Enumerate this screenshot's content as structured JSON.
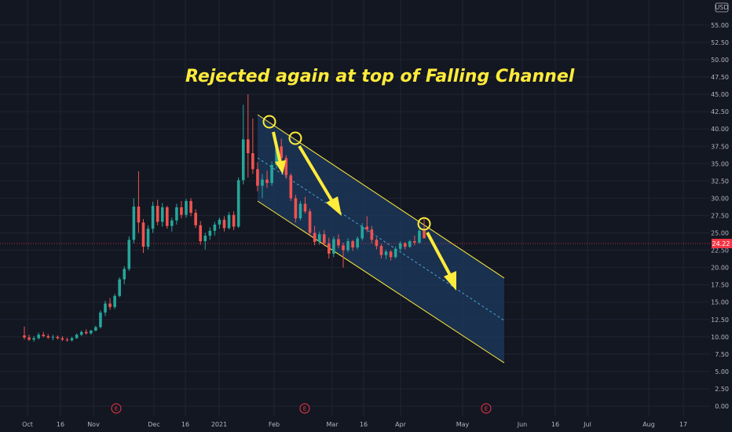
{
  "chart_data": {
    "type": "candlestick",
    "title": "Rejected again at top of Falling Channel",
    "currency": "USD",
    "current_price": "24.22",
    "y_ticks": [
      "55.00",
      "52.50",
      "50.00",
      "47.50",
      "45.00",
      "42.50",
      "40.00",
      "37.50",
      "35.00",
      "32.50",
      "30.00",
      "27.50",
      "25.00",
      "22.50",
      "20.00",
      "17.50",
      "15.00",
      "12.50",
      "10.00",
      "7.50",
      "5.00",
      "2.50",
      "0.00"
    ],
    "ylim": [
      0,
      57
    ],
    "x_ticks": [
      "Oct",
      "16",
      "Nov",
      "Dec",
      "16",
      "2021",
      "Feb",
      "Mar",
      "16",
      "Apr",
      "May",
      "Jun",
      "16",
      "Jul",
      "Aug",
      "17"
    ],
    "earnings_marker": "E",
    "candles": [
      {
        "o": 10.2,
        "h": 11.5,
        "l": 9.6,
        "c": 9.9
      },
      {
        "o": 9.9,
        "h": 10.3,
        "l": 9.4,
        "c": 9.6
      },
      {
        "o": 9.6,
        "h": 10.1,
        "l": 9.3,
        "c": 9.8
      },
      {
        "o": 9.8,
        "h": 10.6,
        "l": 9.6,
        "c": 10.3
      },
      {
        "o": 10.3,
        "h": 10.7,
        "l": 9.9,
        "c": 10.1
      },
      {
        "o": 10.1,
        "h": 10.4,
        "l": 9.7,
        "c": 9.9
      },
      {
        "o": 9.9,
        "h": 10.3,
        "l": 9.5,
        "c": 10.0
      },
      {
        "o": 10.0,
        "h": 10.2,
        "l": 9.6,
        "c": 9.8
      },
      {
        "o": 9.8,
        "h": 10.1,
        "l": 9.4,
        "c": 9.6
      },
      {
        "o": 9.6,
        "h": 9.9,
        "l": 9.3,
        "c": 9.5
      },
      {
        "o": 9.5,
        "h": 10.0,
        "l": 9.3,
        "c": 9.8
      },
      {
        "o": 9.8,
        "h": 10.5,
        "l": 9.7,
        "c": 10.3
      },
      {
        "o": 10.3,
        "h": 10.9,
        "l": 10.1,
        "c": 10.7
      },
      {
        "o": 10.7,
        "h": 11.1,
        "l": 10.3,
        "c": 10.5
      },
      {
        "o": 10.5,
        "h": 11.0,
        "l": 10.3,
        "c": 10.9
      },
      {
        "o": 10.9,
        "h": 11.6,
        "l": 10.8,
        "c": 11.4
      },
      {
        "o": 11.4,
        "h": 13.8,
        "l": 11.2,
        "c": 13.5
      },
      {
        "o": 13.5,
        "h": 15.2,
        "l": 13.0,
        "c": 14.8
      },
      {
        "o": 14.8,
        "h": 15.6,
        "l": 13.9,
        "c": 14.3
      },
      {
        "o": 14.3,
        "h": 16.2,
        "l": 14.0,
        "c": 15.9
      },
      {
        "o": 15.9,
        "h": 18.6,
        "l": 15.7,
        "c": 18.3
      },
      {
        "o": 18.3,
        "h": 20.2,
        "l": 17.6,
        "c": 19.8
      },
      {
        "o": 19.8,
        "h": 24.5,
        "l": 19.5,
        "c": 24.0
      },
      {
        "o": 24.0,
        "h": 30.0,
        "l": 23.5,
        "c": 28.8
      },
      {
        "o": 28.8,
        "h": 33.9,
        "l": 25.0,
        "c": 26.5
      },
      {
        "o": 26.5,
        "h": 27.0,
        "l": 22.1,
        "c": 23.0
      },
      {
        "o": 23.0,
        "h": 26.1,
        "l": 22.6,
        "c": 25.6
      },
      {
        "o": 25.6,
        "h": 29.5,
        "l": 25.0,
        "c": 28.9
      },
      {
        "o": 28.9,
        "h": 29.8,
        "l": 26.1,
        "c": 26.6
      },
      {
        "o": 26.6,
        "h": 29.3,
        "l": 25.9,
        "c": 28.7
      },
      {
        "o": 28.7,
        "h": 28.9,
        "l": 25.6,
        "c": 26.0
      },
      {
        "o": 26.0,
        "h": 27.2,
        "l": 25.2,
        "c": 26.8
      },
      {
        "o": 26.8,
        "h": 29.2,
        "l": 26.2,
        "c": 28.7
      },
      {
        "o": 28.7,
        "h": 29.6,
        "l": 27.1,
        "c": 27.6
      },
      {
        "o": 27.6,
        "h": 29.9,
        "l": 27.2,
        "c": 29.6
      },
      {
        "o": 29.6,
        "h": 30.0,
        "l": 27.4,
        "c": 27.9
      },
      {
        "o": 27.9,
        "h": 28.4,
        "l": 25.7,
        "c": 26.1
      },
      {
        "o": 26.1,
        "h": 26.7,
        "l": 23.3,
        "c": 23.8
      },
      {
        "o": 23.8,
        "h": 25.0,
        "l": 22.6,
        "c": 24.6
      },
      {
        "o": 24.6,
        "h": 25.8,
        "l": 24.0,
        "c": 25.3
      },
      {
        "o": 25.3,
        "h": 26.6,
        "l": 24.6,
        "c": 26.2
      },
      {
        "o": 26.2,
        "h": 27.2,
        "l": 25.6,
        "c": 26.9
      },
      {
        "o": 26.9,
        "h": 27.4,
        "l": 25.2,
        "c": 25.7
      },
      {
        "o": 25.7,
        "h": 28.0,
        "l": 25.5,
        "c": 27.6
      },
      {
        "o": 27.6,
        "h": 28.1,
        "l": 25.4,
        "c": 25.9
      },
      {
        "o": 25.9,
        "h": 33.0,
        "l": 25.7,
        "c": 32.6
      },
      {
        "o": 32.6,
        "h": 43.5,
        "l": 32.0,
        "c": 38.5
      },
      {
        "o": 38.5,
        "h": 45.0,
        "l": 33.0,
        "c": 36.5
      },
      {
        "o": 36.5,
        "h": 41.5,
        "l": 33.5,
        "c": 34.2
      },
      {
        "o": 34.2,
        "h": 35.2,
        "l": 31.0,
        "c": 31.8
      },
      {
        "o": 31.8,
        "h": 33.5,
        "l": 30.0,
        "c": 32.7
      },
      {
        "o": 32.7,
        "h": 34.0,
        "l": 31.5,
        "c": 32.2
      },
      {
        "o": 32.2,
        "h": 35.3,
        "l": 31.8,
        "c": 34.8
      },
      {
        "o": 34.8,
        "h": 38.0,
        "l": 34.3,
        "c": 37.5
      },
      {
        "o": 37.5,
        "h": 38.6,
        "l": 35.3,
        "c": 35.8
      },
      {
        "o": 35.8,
        "h": 36.2,
        "l": 32.8,
        "c": 33.3
      },
      {
        "o": 33.3,
        "h": 33.6,
        "l": 29.6,
        "c": 30.0
      },
      {
        "o": 30.0,
        "h": 30.5,
        "l": 26.5,
        "c": 27.1
      },
      {
        "o": 27.1,
        "h": 29.6,
        "l": 26.8,
        "c": 29.2
      },
      {
        "o": 29.2,
        "h": 30.2,
        "l": 27.8,
        "c": 28.1
      },
      {
        "o": 28.1,
        "h": 28.5,
        "l": 24.5,
        "c": 25.0
      },
      {
        "o": 25.0,
        "h": 26.0,
        "l": 23.2,
        "c": 23.7
      },
      {
        "o": 23.7,
        "h": 25.2,
        "l": 23.3,
        "c": 24.8
      },
      {
        "o": 24.8,
        "h": 25.4,
        "l": 23.1,
        "c": 23.5
      },
      {
        "o": 23.5,
        "h": 24.3,
        "l": 21.3,
        "c": 22.0
      },
      {
        "o": 22.0,
        "h": 24.5,
        "l": 21.5,
        "c": 24.1
      },
      {
        "o": 24.1,
        "h": 24.8,
        "l": 22.8,
        "c": 23.2
      },
      {
        "o": 23.2,
        "h": 23.6,
        "l": 20.0,
        "c": 22.5
      },
      {
        "o": 22.5,
        "h": 24.2,
        "l": 22.2,
        "c": 23.8
      },
      {
        "o": 23.8,
        "h": 24.0,
        "l": 22.4,
        "c": 22.9
      },
      {
        "o": 22.9,
        "h": 24.5,
        "l": 22.6,
        "c": 24.2
      },
      {
        "o": 24.2,
        "h": 26.4,
        "l": 23.9,
        "c": 25.9
      },
      {
        "o": 25.9,
        "h": 27.4,
        "l": 25.1,
        "c": 25.5
      },
      {
        "o": 25.5,
        "h": 26.0,
        "l": 23.5,
        "c": 24.0
      },
      {
        "o": 24.0,
        "h": 24.3,
        "l": 22.6,
        "c": 23.1
      },
      {
        "o": 23.1,
        "h": 23.4,
        "l": 21.3,
        "c": 21.8
      },
      {
        "o": 21.8,
        "h": 22.6,
        "l": 21.2,
        "c": 22.3
      },
      {
        "o": 22.3,
        "h": 22.5,
        "l": 21.0,
        "c": 21.5
      },
      {
        "o": 21.5,
        "h": 23.0,
        "l": 21.3,
        "c": 22.7
      },
      {
        "o": 22.7,
        "h": 23.8,
        "l": 22.4,
        "c": 23.5
      },
      {
        "o": 23.5,
        "h": 23.7,
        "l": 22.6,
        "c": 23.0
      },
      {
        "o": 23.0,
        "h": 24.0,
        "l": 22.8,
        "c": 23.8
      },
      {
        "o": 23.8,
        "h": 24.6,
        "l": 23.2,
        "c": 23.6
      },
      {
        "o": 23.6,
        "h": 25.6,
        "l": 23.4,
        "c": 25.3
      },
      {
        "o": 25.3,
        "h": 27.0,
        "l": 24.3,
        "c": 24.22
      }
    ]
  }
}
